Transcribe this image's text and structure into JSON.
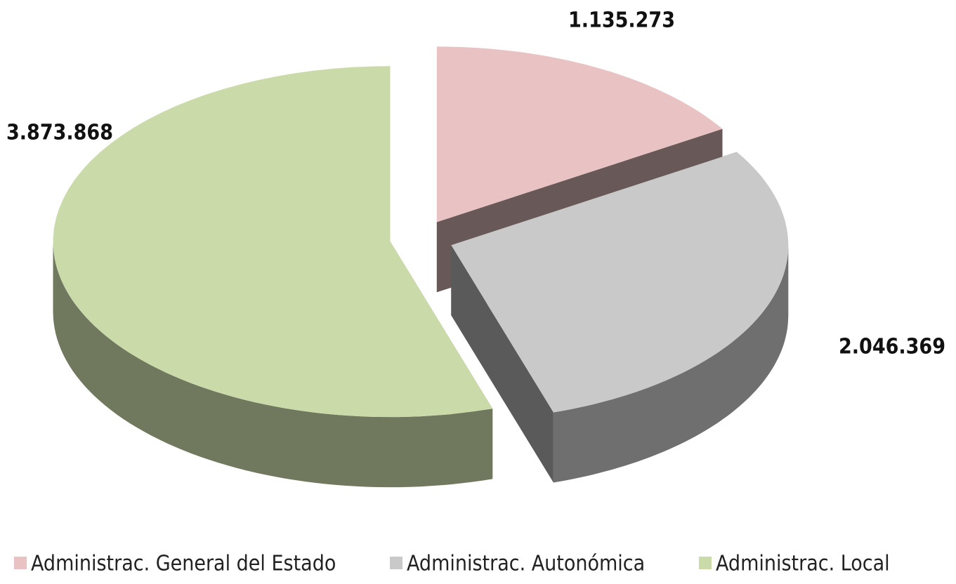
{
  "chart_data": {
    "type": "pie",
    "categories": [
      "Administrac. General del Estado",
      "Administrac. Autonómica",
      "Administrac. Local"
    ],
    "values": [
      1135273,
      2046369,
      3873868
    ],
    "value_labels": [
      "1.135.273",
      "2.046.369",
      "3.873.868"
    ],
    "colors": [
      "#e9c3c3",
      "#c9c9c9",
      "#cbdaa9"
    ],
    "legend": "bottom"
  }
}
